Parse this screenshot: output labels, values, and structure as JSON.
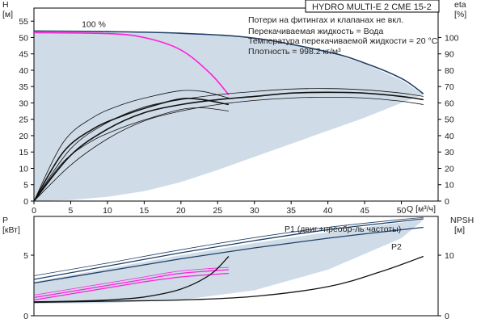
{
  "chart_data": [
    {
      "type": "line",
      "panel": "head-efficiency",
      "title": "HYDRO MULTI-E 2 CME 15-2",
      "notes": [
        "Потери на фитингах и клапанах не вкл.",
        "Перекачиваемая жидкость = Вода",
        "Температура перекачиваемой жидкости = 20 °C",
        "Плотность = 998.2 кг/м³"
      ],
      "xlabel": "Q [м³/ч]",
      "ylabel_left": "H\n[м]",
      "ylabel_right": "eta\n[%]",
      "xlim": [
        0,
        55
      ],
      "ylim_left": [
        0,
        59
      ],
      "ylim_right": [
        0,
        118
      ],
      "x_ticks": [
        0,
        5,
        10,
        15,
        20,
        25,
        30,
        35,
        40,
        45,
        50
      ],
      "y_ticks_left": [
        0,
        5,
        10,
        15,
        20,
        25,
        30,
        35,
        40,
        45,
        50,
        55
      ],
      "y_ticks_right": [
        0,
        10,
        20,
        30,
        40,
        50,
        60,
        70,
        80,
        90,
        100
      ],
      "grid": false,
      "operating_range": {
        "upper": [
          [
            0,
            52
          ],
          [
            3,
            51.3
          ],
          [
            6,
            51.5
          ],
          [
            10,
            51.6
          ],
          [
            15,
            51.5
          ],
          [
            20,
            51.3
          ],
          [
            25,
            50.8
          ],
          [
            30,
            49.5
          ],
          [
            35,
            47.8
          ],
          [
            40,
            45.5
          ],
          [
            45,
            42
          ],
          [
            50,
            37
          ],
          [
            53,
            32.5
          ]
        ],
        "lower": [
          [
            53,
            32.5
          ],
          [
            50,
            30
          ],
          [
            45,
            25.5
          ],
          [
            40,
            21.5
          ],
          [
            35,
            17.5
          ],
          [
            30,
            13.5
          ],
          [
            25,
            9.5
          ],
          [
            20,
            5.8
          ],
          [
            15,
            3
          ],
          [
            10,
            1.3
          ],
          [
            5,
            0.3
          ],
          [
            0,
            0
          ]
        ]
      },
      "series": [
        {
          "role": "head-max",
          "color": "#1f3f66",
          "points": [
            [
              0,
              52
            ],
            [
              10,
              51.8
            ],
            [
              20,
              51.3
            ],
            [
              30,
              49.8
            ],
            [
              40,
              45.6
            ],
            [
              45,
              42.2
            ],
            [
              50,
              37.5
            ],
            [
              53,
              32.8
            ]
          ]
        },
        {
          "role": "head-reduced",
          "color": "#ff1fd9",
          "points": [
            [
              0,
              51.5
            ],
            [
              10,
              51.2
            ],
            [
              15,
              50
            ],
            [
              20,
              46.2
            ],
            [
              24,
              39
            ],
            [
              26.5,
              32.5
            ]
          ]
        },
        {
          "role": "efficiency-max",
          "color": "#111111",
          "points": [
            [
              0,
              0
            ],
            [
              5,
              28
            ],
            [
              10,
              44
            ],
            [
              15,
              54
            ],
            [
              20,
              59
            ],
            [
              25,
              62
            ],
            [
              30,
              64
            ],
            [
              35,
              66
            ],
            [
              40,
              66.5
            ],
            [
              45,
              66
            ],
            [
              50,
              64
            ],
            [
              53,
              62
            ]
          ]
        },
        {
          "role": "efficiency-max-band-upper",
          "color": "#111111",
          "points": [
            [
              0,
              0
            ],
            [
              5,
              32
            ],
            [
              10,
              48
            ],
            [
              15,
              57.5
            ],
            [
              20,
              62
            ],
            [
              25,
              65
            ],
            [
              30,
              67
            ],
            [
              35,
              68.5
            ],
            [
              40,
              68.8
            ],
            [
              45,
              68
            ],
            [
              50,
              66
            ],
            [
              53,
              64
            ]
          ]
        },
        {
          "role": "efficiency-max-band-lower",
          "color": "#111111",
          "points": [
            [
              0,
              0
            ],
            [
              5,
              22
            ],
            [
              10,
              38
            ],
            [
              15,
              49
            ],
            [
              20,
              55
            ],
            [
              25,
              59
            ],
            [
              30,
              61.5
            ],
            [
              35,
              63
            ],
            [
              40,
              63.5
            ],
            [
              45,
              63
            ],
            [
              50,
              61
            ],
            [
              53,
              59
            ]
          ]
        },
        {
          "role": "efficiency-reduced",
          "color": "#111111",
          "points": [
            [
              0,
              0
            ],
            [
              4,
              30
            ],
            [
              8,
              44
            ],
            [
              12,
              52
            ],
            [
              16,
              58
            ],
            [
              20,
              62.5
            ],
            [
              23,
              62
            ],
            [
              26.5,
              59
            ]
          ]
        },
        {
          "role": "efficiency-reduced-band-upper",
          "color": "#111111",
          "points": [
            [
              0,
              0
            ],
            [
              4,
              36
            ],
            [
              8,
              51
            ],
            [
              12,
              59
            ],
            [
              16,
              64
            ],
            [
              20,
              67.5
            ],
            [
              23,
              67
            ],
            [
              26.5,
              63
            ]
          ]
        },
        {
          "role": "efficiency-reduced-band-lower",
          "color": "#111111",
          "points": [
            [
              0,
              0
            ],
            [
              4,
              24
            ],
            [
              8,
              37
            ],
            [
              12,
              45
            ],
            [
              16,
              51
            ],
            [
              20,
              56
            ],
            [
              23,
              57
            ],
            [
              26.5,
              55
            ]
          ]
        }
      ],
      "annotations": [
        {
          "text": "100 %",
          "x": 6.5,
          "y": 53.2
        }
      ]
    },
    {
      "type": "line",
      "panel": "power-npsh",
      "xlim": [
        0,
        55
      ],
      "ylabel_left": "P\n[кВт]",
      "ylabel_right": "NPSH\n[м]",
      "ylim_left": [
        0,
        8.2
      ],
      "ylim_right": [
        0,
        16.4
      ],
      "y_ticks_left": [
        0,
        5
      ],
      "y_ticks_right": [
        0,
        10
      ],
      "grid": false,
      "operating_range": {
        "upper": [
          [
            0,
            2.8
          ],
          [
            10,
            3.9
          ],
          [
            20,
            5
          ],
          [
            30,
            6
          ],
          [
            40,
            6.9
          ],
          [
            50,
            7.7
          ],
          [
            53,
            7.9
          ]
        ],
        "lower": [
          [
            53,
            7.9
          ],
          [
            50,
            6.4
          ],
          [
            40,
            3.8
          ],
          [
            30,
            2.1
          ],
          [
            20,
            1.3
          ],
          [
            10,
            1.05
          ],
          [
            0,
            1
          ]
        ]
      },
      "series": [
        {
          "role": "P1",
          "label": "P1 (двиг.+преобр-ль частоты)",
          "color": "#1f3f66",
          "points": [
            [
              0,
              3.0
            ],
            [
              10,
              4.1
            ],
            [
              20,
              5.2
            ],
            [
              30,
              6.2
            ],
            [
              40,
              7.1
            ],
            [
              50,
              7.8
            ],
            [
              53,
              8.0
            ]
          ]
        },
        {
          "role": "P1-band",
          "color": "#1f3f66",
          "points": [
            [
              0,
              3.3
            ],
            [
              10,
              4.35
            ],
            [
              20,
              5.45
            ],
            [
              30,
              6.45
            ],
            [
              40,
              7.3
            ],
            [
              50,
              7.95
            ],
            [
              53,
              8.1
            ]
          ]
        },
        {
          "role": "P2",
          "label": "P2",
          "color": "#1f3f66",
          "points": [
            [
              0,
              2.7
            ],
            [
              10,
              3.7
            ],
            [
              20,
              4.7
            ],
            [
              30,
              5.6
            ],
            [
              40,
              6.4
            ],
            [
              50,
              7.1
            ],
            [
              53,
              7.3
            ]
          ]
        },
        {
          "role": "P1-reduced",
          "color": "#ff1fd9",
          "points": [
            [
              0,
              1.5
            ],
            [
              5,
              2
            ],
            [
              10,
              2.5
            ],
            [
              15,
              3
            ],
            [
              20,
              3.5
            ],
            [
              26.5,
              3.8
            ]
          ]
        },
        {
          "role": "P1-reduced-band-upper",
          "color": "#ff1fd9",
          "points": [
            [
              0,
              1.7
            ],
            [
              5,
              2.2
            ],
            [
              10,
              2.7
            ],
            [
              15,
              3.2
            ],
            [
              20,
              3.7
            ],
            [
              26.5,
              4.0
            ]
          ]
        },
        {
          "role": "P2-reduced",
          "color": "#ff1fd9",
          "points": [
            [
              0,
              1.3
            ],
            [
              5,
              1.8
            ],
            [
              10,
              2.3
            ],
            [
              15,
              2.8
            ],
            [
              20,
              3.2
            ],
            [
              26.5,
              3.5
            ]
          ]
        },
        {
          "role": "NPSH-max",
          "color": "#111111",
          "axis": "right",
          "points": [
            [
              0,
              2.2
            ],
            [
              10,
              2.4
            ],
            [
              20,
              2.6
            ],
            [
              30,
              3.2
            ],
            [
              40,
              4.8
            ],
            [
              47,
              7.2
            ],
            [
              53,
              9.8
            ]
          ]
        },
        {
          "role": "NPSH-reduced",
          "color": "#111111",
          "axis": "right",
          "points": [
            [
              0,
              2.3
            ],
            [
              5,
              2.4
            ],
            [
              10,
              2.6
            ],
            [
              15,
              3.1
            ],
            [
              20,
              4.4
            ],
            [
              24,
              6.8
            ],
            [
              26.5,
              9.8
            ]
          ]
        }
      ]
    }
  ]
}
